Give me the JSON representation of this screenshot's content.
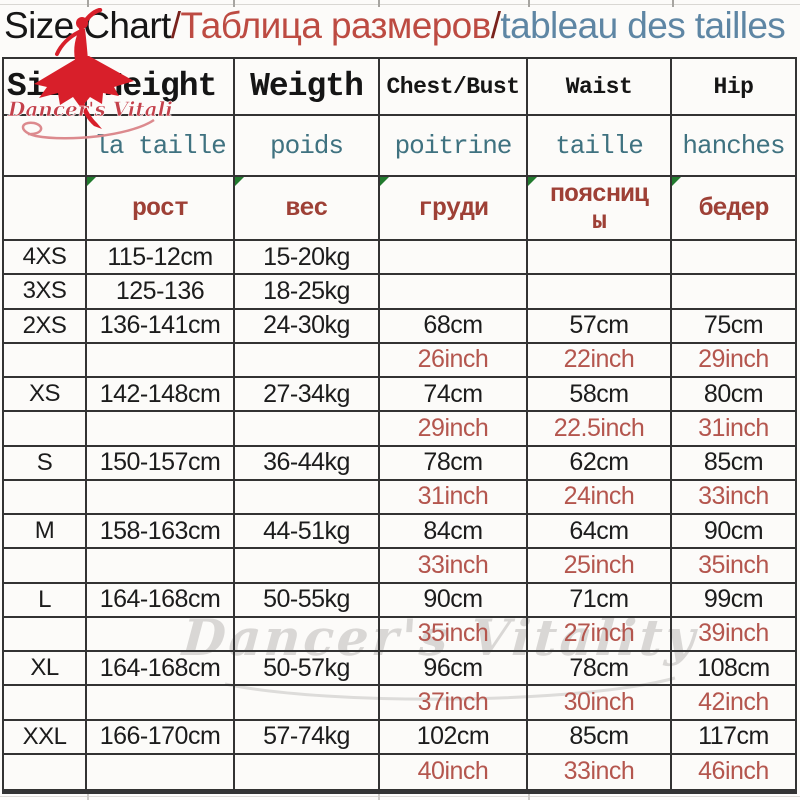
{
  "title": {
    "en": "Size Chart",
    "slash1": "/",
    "ru": "Таблица размеров",
    "slash2": "/",
    "fr": "tableau des tailles"
  },
  "logo": {
    "brand": "Dancer's Vitality"
  },
  "watermark": {
    "text": "Dancer's Vitality"
  },
  "colors": {
    "title_ru": "#bd4b42",
    "title_fr": "#5e86a4",
    "title_slash": "#7a231d",
    "header_fr": "#3f7280",
    "header_ru": "#9e4036",
    "inch_red": "#b4564e",
    "data_text": "#1c1c1c",
    "border": "#333333",
    "logo_red": "#d81f2a",
    "logo_script": "#c4414b",
    "swirl_pink": "#dc8a8e",
    "triangle_green": "#217a2e",
    "watermark_gray": "#b4b2b0"
  },
  "chart_data": {
    "type": "table",
    "title": "Size Chart / Таблица размеров / tableau des tailles",
    "columns": [
      "Size",
      "Height",
      "Weigth",
      "Chest/Bust",
      "Waist",
      "Hip"
    ],
    "header_rows": {
      "en": [
        "Size",
        "Height",
        "Weigth",
        "Chest/Bust",
        "Waist",
        "Hip"
      ],
      "fr": [
        "",
        "la taille",
        "poids",
        "poitrine",
        "taille",
        "hanches"
      ],
      "ru": [
        "",
        "рост",
        "вес",
        "груди",
        "поясницы",
        "бедер"
      ]
    },
    "rows": [
      {
        "unit": "cm",
        "cells": [
          "4XS",
          "115-12cm",
          "15-20kg",
          "",
          "",
          ""
        ]
      },
      {
        "unit": "cm",
        "cells": [
          "3XS",
          "125-136",
          "18-25kg",
          "",
          "",
          ""
        ]
      },
      {
        "unit": "cm",
        "cells": [
          "2XS",
          "136-141cm",
          "24-30kg",
          "68cm",
          "57cm",
          "75cm"
        ]
      },
      {
        "unit": "inch",
        "cells": [
          "",
          "",
          "",
          "26inch",
          "22inch",
          "29inch"
        ]
      },
      {
        "unit": "cm",
        "cells": [
          "XS",
          "142-148cm",
          "27-34kg",
          "74cm",
          "58cm",
          "80cm"
        ]
      },
      {
        "unit": "inch",
        "cells": [
          "",
          "",
          "",
          "29inch",
          "22.5inch",
          "31inch"
        ]
      },
      {
        "unit": "cm",
        "cells": [
          "S",
          "150-157cm",
          "36-44kg",
          "78cm",
          "62cm",
          "85cm"
        ]
      },
      {
        "unit": "inch",
        "cells": [
          "",
          "",
          "",
          "31inch",
          "24inch",
          "33inch"
        ]
      },
      {
        "unit": "cm",
        "cells": [
          "M",
          "158-163cm",
          "44-51kg",
          "84cm",
          "64cm",
          "90cm"
        ]
      },
      {
        "unit": "inch",
        "cells": [
          "",
          "",
          "",
          "33inch",
          "25inch",
          "35inch"
        ]
      },
      {
        "unit": "cm",
        "cells": [
          "L",
          "164-168cm",
          "50-55kg",
          "90cm",
          "71cm",
          "99cm"
        ]
      },
      {
        "unit": "inch",
        "cells": [
          "",
          "",
          "",
          "35inch",
          "27inch",
          "39inch"
        ]
      },
      {
        "unit": "cm",
        "cells": [
          "XL",
          "164-168cm",
          "50-57kg",
          "96cm",
          "78cm",
          "108cm"
        ]
      },
      {
        "unit": "inch",
        "cells": [
          "",
          "",
          "",
          "37inch",
          "30inch",
          "42inch"
        ]
      },
      {
        "unit": "cm",
        "cells": [
          "XXL",
          "166-170cm",
          "57-74kg",
          "102cm",
          "85cm",
          "117cm"
        ]
      },
      {
        "unit": "inch",
        "cells": [
          "",
          "",
          "",
          "40inch",
          "33inch",
          "46inch"
        ]
      }
    ]
  }
}
